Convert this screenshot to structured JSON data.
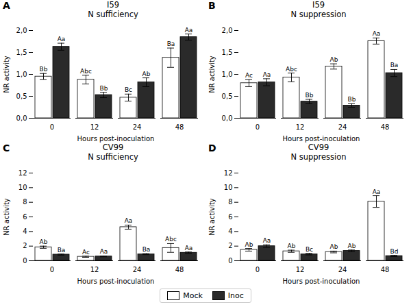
{
  "chart_data": [
    {
      "type": "bar",
      "panel_label": "A",
      "title": "I59",
      "subtitle": "N sufficiency",
      "xlabel": "Hours post-inoculation",
      "ylabel": "NR activity",
      "categories": [
        "0",
        "12",
        "24",
        "48"
      ],
      "series": [
        {
          "name": "Mock",
          "color": "#ffffff",
          "values": [
            0.95,
            0.88,
            0.47,
            1.38
          ],
          "errors": [
            0.07,
            0.1,
            0.08,
            0.22
          ],
          "labels": [
            "Bb",
            "Abc",
            "Bc",
            "Ba"
          ]
        },
        {
          "name": "Inoc",
          "color": "#2a2a2a",
          "values": [
            1.63,
            0.53,
            0.82,
            1.85
          ],
          "errors": [
            0.08,
            0.06,
            0.1,
            0.07
          ],
          "labels": [
            "Aa",
            "Bb",
            "Ab",
            "Aa"
          ]
        }
      ],
      "ylim": [
        0,
        2.0
      ],
      "yticks": [
        {
          "value": 0.0,
          "label": "0,0"
        },
        {
          "value": 0.5,
          "label": "0,5"
        },
        {
          "value": 1.0,
          "label": "1,0"
        },
        {
          "value": 1.5,
          "label": "1,5"
        },
        {
          "value": 2.0,
          "label": "2,0"
        }
      ],
      "grid": false,
      "legend": "bottom"
    },
    {
      "type": "bar",
      "panel_label": "B",
      "title": "I59",
      "subtitle": "N suppression",
      "xlabel": "Hours post-inoculation",
      "ylabel": "NR activity",
      "categories": [
        "0",
        "12",
        "24",
        "48"
      ],
      "series": [
        {
          "name": "Mock",
          "color": "#ffffff",
          "values": [
            0.8,
            0.93,
            1.18,
            1.76
          ],
          "errors": [
            0.08,
            0.1,
            0.06,
            0.07
          ],
          "labels": [
            "Ac",
            "Abc",
            "Ab",
            "Aa"
          ]
        },
        {
          "name": "Inoc",
          "color": "#2a2a2a",
          "values": [
            0.82,
            0.38,
            0.29,
            1.03
          ],
          "errors": [
            0.08,
            0.05,
            0.04,
            0.08
          ],
          "labels": [
            "Aa",
            "Bb",
            "Bb",
            "Ba"
          ]
        }
      ],
      "ylim": [
        0,
        2.0
      ],
      "yticks": [
        {
          "value": 0.0,
          "label": "0,0"
        },
        {
          "value": 0.5,
          "label": "0,5"
        },
        {
          "value": 1.0,
          "label": "1,0"
        },
        {
          "value": 1.5,
          "label": "1,5"
        },
        {
          "value": 2.0,
          "label": "2,0"
        }
      ],
      "grid": false,
      "legend": "bottom"
    },
    {
      "type": "bar",
      "panel_label": "C",
      "title": "CV99",
      "subtitle": "N sufficiency",
      "xlabel": "Hours post-inoculation",
      "ylabel": "NR activity",
      "categories": [
        "0",
        "12",
        "24",
        "48"
      ],
      "series": [
        {
          "name": "Mock",
          "color": "#ffffff",
          "values": [
            1.85,
            0.55,
            4.6,
            1.75
          ],
          "errors": [
            0.15,
            0.08,
            0.28,
            0.6
          ],
          "labels": [
            "Ab",
            "Ac",
            "Aa",
            "Abc"
          ]
        },
        {
          "name": "Inoc",
          "color": "#2a2a2a",
          "values": [
            0.85,
            0.6,
            0.9,
            1.1
          ],
          "errors": [
            0.08,
            0.06,
            0.07,
            0.1
          ],
          "labels": [
            "Ba",
            "Aa",
            "Ba",
            "Aa"
          ]
        }
      ],
      "ylim": [
        0,
        12
      ],
      "yticks": [
        0,
        2,
        4,
        6,
        8,
        10,
        12
      ],
      "grid": false,
      "legend": "bottom"
    },
    {
      "type": "bar",
      "panel_label": "D",
      "title": "CV99",
      "subtitle": "N suppression",
      "xlabel": "Hours post-inoculation",
      "ylabel": "NR activity",
      "categories": [
        "0",
        "12",
        "24",
        "48"
      ],
      "series": [
        {
          "name": "Mock",
          "color": "#ffffff",
          "values": [
            1.5,
            1.3,
            1.2,
            8.1
          ],
          "errors": [
            0.18,
            0.15,
            0.12,
            0.8
          ],
          "labels": [
            "Ab",
            "Ab",
            "Ab",
            "Aa"
          ]
        },
        {
          "name": "Inoc",
          "color": "#2a2a2a",
          "values": [
            2.0,
            0.9,
            1.35,
            0.65
          ],
          "errors": [
            0.18,
            0.1,
            0.12,
            0.08
          ],
          "labels": [
            "Aa",
            "Bc",
            "Ab",
            "Bd"
          ]
        }
      ],
      "ylim": [
        0,
        12
      ],
      "yticks": [
        0,
        2,
        4,
        6,
        8,
        10,
        12
      ],
      "grid": false,
      "legend": "bottom"
    }
  ]
}
